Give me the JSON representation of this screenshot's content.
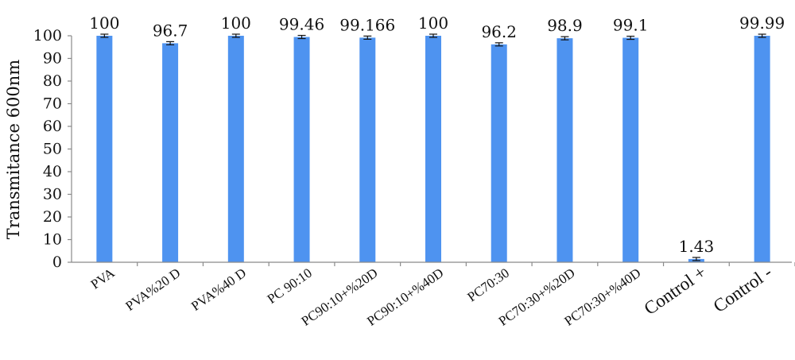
{
  "chart_data": {
    "type": "bar",
    "ylabel": "Transmitance 600nm",
    "xlabel": "",
    "ylim": [
      0,
      100
    ],
    "yticks": [
      0,
      10,
      20,
      30,
      40,
      50,
      60,
      70,
      80,
      90,
      100
    ],
    "grid": false,
    "bar_color": "#4e93f0",
    "categories": [
      "PVA",
      "PVA%20 D",
      "PVA%40 D",
      "PC 90:10",
      "PC90:10+%20D",
      "PC90:10+%40D",
      "PC70:30",
      "PC70:30+%20D",
      "PC70:30+%40D",
      "Control +",
      "Control -"
    ],
    "values": [
      100,
      96.7,
      100,
      99.46,
      99.166,
      100,
      96.2,
      98.9,
      99.1,
      1.43,
      99.99
    ],
    "value_labels": [
      "100",
      "96.7",
      "100",
      "99.46",
      "99.166",
      "100",
      "96.2",
      "98.9",
      "99.1",
      "1.43",
      "99.99"
    ],
    "error_bars": true
  }
}
